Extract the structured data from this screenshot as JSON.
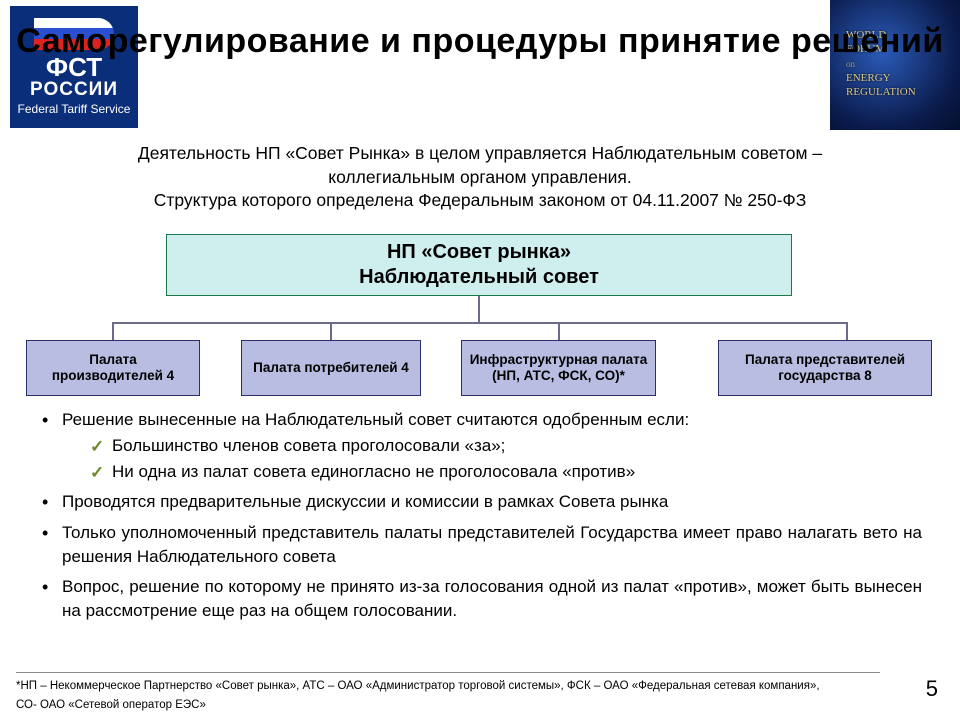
{
  "logo": {
    "line1": "ФСТ",
    "line2": "РОССИИ",
    "line3": "Federal Tariff Service",
    "bg_color": "#0b2e7a"
  },
  "globe": {
    "line1": "WORLD",
    "line2": "FORUM",
    "line3": "ENERGY",
    "line4": "REGULATION"
  },
  "title": "Саморегулирование и процедуры принятие решений",
  "intro_l1": "Деятельность НП «Совет Рынка» в целом управляется Наблюдательным советом –",
  "intro_l2": "коллегиальным органом управления.",
  "intro_l3": "Структура которого определена Федеральным законом от 04.11.2007 № 250-ФЗ",
  "org": {
    "top_l1": "НП «Совет рынка»",
    "top_l2": "Наблюдательный совет",
    "top_bg": "#cfeeee",
    "top_border": "#1a7a4d",
    "chamber_bg": "#b9bde2",
    "chamber_border": "#2b2f6e",
    "connector_color": "#6a6a8a",
    "chambers": {
      "c1": "Палата производителей 4",
      "c2": "Палата потребителей 4",
      "c3": "Инфраструктурная палата (НП, АТС, ФСК, СО)*",
      "c4": "Палата представителей государства 8"
    }
  },
  "bullets": {
    "b1": "Решение вынесенные на Наблюдательный совет считаются одобренным если:",
    "b1a": "Большинство членов совета проголосовали «за»;",
    "b1b": "Ни одна из палат совета единогласно не проголосовала «против»",
    "b2": "Проводятся предварительные дискуссии и комиссии в рамках Совета рынка",
    "b3": "Только уполномоченный представитель палаты представителей Государства имеет право налагать вето на решения Наблюдательного совета",
    "b4": "Вопрос, решение по которому не принято из-за голосования одной из палат «против», может быть вынесен на рассмотрение еще раз на общем голосовании."
  },
  "footnote_l1": "*НП – Некоммерческое Партнерство «Совет рынка», АТС – ОАО «Администратор торговой системы», ФСК – ОАО «Федеральная сетевая компания»,",
  "footnote_l2": "СО- ОАО «Сетевой оператор ЕЭС»",
  "pagenum": "5",
  "colors": {
    "page_bg": "#ffffff",
    "text": "#000000",
    "check": "#6a8a2a"
  }
}
